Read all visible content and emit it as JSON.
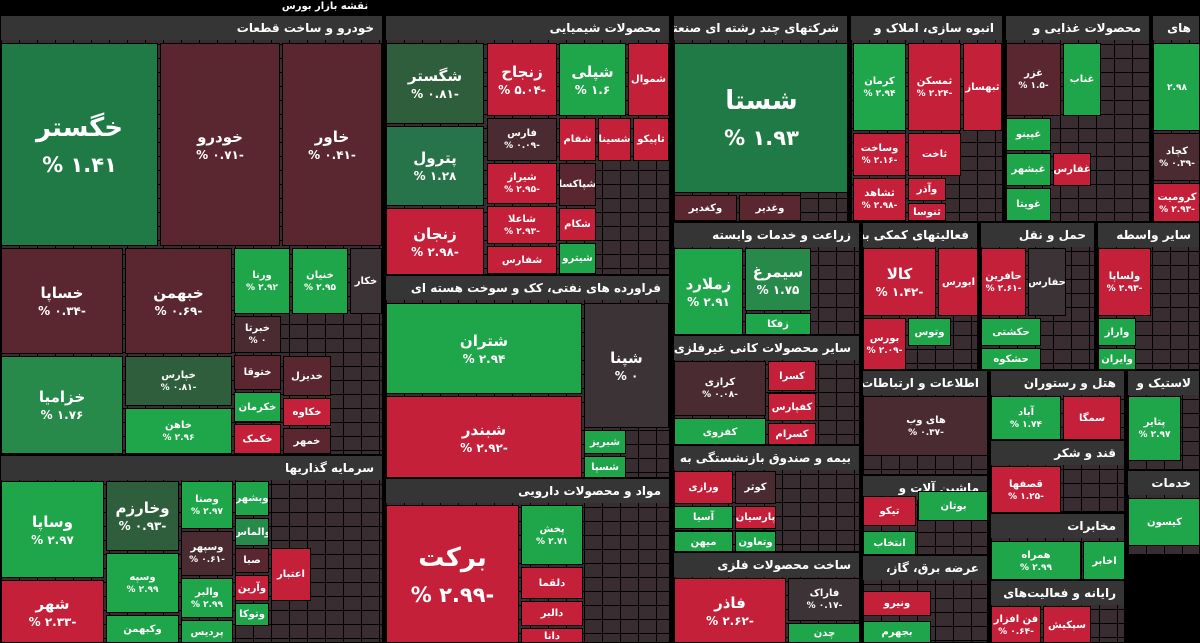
{
  "title": "نقشه بازار بورس",
  "sectors": [
    {
      "name": "خودرو و ساخت قطعات",
      "tiles": [
        {
          "label": "خگستر",
          "change": "۱.۴۱ %",
          "color": "#1f7a45"
        },
        {
          "label": "خودرو",
          "change": "-۰.۷۱ %",
          "color": "#5a2630"
        },
        {
          "label": "خاور",
          "change": "-۰.۴۱ %",
          "color": "#5a2630"
        },
        {
          "label": "خساپا",
          "change": "-۰.۳۴ %",
          "color": "#5a2630"
        },
        {
          "label": "خبهمن",
          "change": "-۰.۶۹ %",
          "color": "#5a2630"
        },
        {
          "label": "ورنا",
          "change": "۲.۹۲ %",
          "color": "#1fa64a"
        },
        {
          "label": "خنیان",
          "change": "۲.۹۵ %",
          "color": "#1fa64a"
        },
        {
          "label": "خکار",
          "color": "#3b3335"
        },
        {
          "label": "خزامیا",
          "change": "۱.۷۶ %",
          "color": "#27894a"
        },
        {
          "label": "خپارس",
          "change": "-۰.۸۱ %",
          "color": "#2e5e3c"
        },
        {
          "label": "خاهن",
          "change": "۲.۹۶ %",
          "color": "#1fa64a"
        },
        {
          "label": "خبرتا",
          "change": "۰ %",
          "color": "#4a2b31"
        },
        {
          "label": "ختوقا",
          "color": "#5a2630"
        },
        {
          "label": "خکرمان",
          "color": "#1fa64a"
        },
        {
          "label": "خکمک",
          "color": "#c5203a"
        },
        {
          "label": "خدیزل",
          "color": "#5a2630"
        },
        {
          "label": "خکاوه",
          "color": "#c5203a"
        },
        {
          "label": "خمهر",
          "color": "#5a2630"
        }
      ]
    },
    {
      "name": "سرمایه گذاریها",
      "tiles": [
        {
          "label": "وساپا",
          "change": "۲.۹۷ %",
          "color": "#1fa64a"
        },
        {
          "label": "شهر",
          "change": "-۲.۳۳ %",
          "color": "#c5203a"
        },
        {
          "label": "وخارزم",
          "change": "-۰.۹۳ %",
          "color": "#2e5e3c"
        },
        {
          "label": "وسپه",
          "change": "۲.۹۹ %",
          "color": "#1fa64a"
        },
        {
          "label": "وکبهمن",
          "color": "#1fa64a"
        },
        {
          "label": "وصنا",
          "change": "۲.۹۷ %",
          "color": "#1fa64a"
        },
        {
          "label": "وسپهر",
          "change": "-۰.۶۱ %",
          "color": "#4a2b31"
        },
        {
          "label": "والبر",
          "change": "۲.۹۹ %",
          "color": "#1fa64a"
        },
        {
          "label": "پردیس",
          "color": "#1fa64a"
        },
        {
          "label": "وبشهر",
          "color": "#1fa64a"
        },
        {
          "label": "والماس",
          "color": "#27894a"
        },
        {
          "label": "صبا",
          "color": "#5a2630"
        },
        {
          "label": "وآرین",
          "color": "#c5203a"
        },
        {
          "label": "وتوکا",
          "color": "#1fa64a"
        },
        {
          "label": "اعتبار",
          "color": "#c5203a"
        }
      ]
    },
    {
      "name": "محصولات شیمیایی",
      "tiles": [
        {
          "label": "شگستر",
          "change": "-۰.۸۱ %",
          "color": "#2e5e3c"
        },
        {
          "label": "پترول",
          "change": "۱.۲۸ %",
          "color": "#27734a"
        },
        {
          "label": "زنجان",
          "change": "-۲.۹۸ %",
          "color": "#c5203a"
        },
        {
          "label": "زنجاح",
          "change": "-۵.۰۴ %",
          "color": "#c5203a"
        },
        {
          "label": "شپلی",
          "change": "۱.۶ %",
          "color": "#1fa64a"
        },
        {
          "label": "شموال",
          "color": "#c5203a"
        },
        {
          "label": "فارس",
          "change": "-۰.۰۹ %",
          "color": "#4a2b31"
        },
        {
          "label": "شفام",
          "color": "#c5203a"
        },
        {
          "label": "شسینا",
          "color": "#c5203a"
        },
        {
          "label": "تاپیکو",
          "color": "#c5203a"
        },
        {
          "label": "شیراز",
          "change": "-۲.۹۵ %",
          "color": "#c5203a"
        },
        {
          "label": "شپاکسا",
          "color": "#5a2630"
        },
        {
          "label": "شاعلا",
          "change": "-۲.۹۳ %",
          "color": "#c5203a"
        },
        {
          "label": "شکام",
          "color": "#c5203a"
        },
        {
          "label": "شفارس",
          "color": "#c5203a"
        },
        {
          "label": "شیترو",
          "color": "#1fa64a"
        }
      ]
    },
    {
      "name": "فراورده های نفتی، کک و سوخت هسته ای",
      "tiles": [
        {
          "label": "شتران",
          "change": "۲.۹۴ %",
          "color": "#1fa64a"
        },
        {
          "label": "شبندر",
          "change": "-۲.۹۲ %",
          "color": "#c5203a"
        },
        {
          "label": "شپنا",
          "change": "۰ %",
          "color": "#3b3335"
        },
        {
          "label": "شبریز",
          "color": "#1fa64a"
        },
        {
          "label": "شسپا",
          "color": "#1fa64a"
        }
      ]
    },
    {
      "name": "مواد و محصولات دارویی",
      "tiles": [
        {
          "label": "برکت",
          "change": "-۲.۹۹ %",
          "color": "#c5203a"
        },
        {
          "label": "پخش",
          "change": "۲.۷۱ %",
          "color": "#1fa64a"
        },
        {
          "label": "دلقما",
          "color": "#c5203a"
        },
        {
          "label": "دالبر",
          "color": "#c5203a"
        },
        {
          "label": "دانا",
          "color": "#c5203a"
        }
      ]
    },
    {
      "name": "شرکتهای چند رشته ای صنعتی",
      "tiles": [
        {
          "label": "شستا",
          "change": "۱.۹۳ %",
          "color": "#1f7a45"
        },
        {
          "label": "وکغدیر",
          "color": "#5a2630"
        },
        {
          "label": "وغدیر",
          "color": "#5a2630"
        }
      ]
    },
    {
      "name": "انبوه سازی، املاک و",
      "tiles": [
        {
          "label": "کرمان",
          "change": "۲.۹۴ %",
          "color": "#1fa64a"
        },
        {
          "label": "ثمسکن",
          "change": "-۲.۲۴ %",
          "color": "#c5203a"
        },
        {
          "label": "ثبهساز",
          "color": "#c5203a"
        },
        {
          "label": "وساخت",
          "change": "-۲.۱۶ %",
          "color": "#c5203a"
        },
        {
          "label": "ثاخت",
          "color": "#c5203a"
        },
        {
          "label": "ثشاهد",
          "change": "-۲.۹۸ %",
          "color": "#c5203a"
        },
        {
          "label": "وآذر",
          "color": "#c5203a"
        },
        {
          "label": "ثنوسا",
          "color": "#c5203a"
        }
      ]
    },
    {
      "name": "محصولات غذایی و",
      "tiles": [
        {
          "label": "غزر",
          "change": "-۱.۵ %",
          "color": "#5a2630"
        },
        {
          "label": "غناب",
          "color": "#1fa64a"
        },
        {
          "label": "غپینو",
          "color": "#1fa64a"
        },
        {
          "label": "غبشهر",
          "color": "#1fa64a"
        },
        {
          "label": "غفارس",
          "color": "#c5203a"
        },
        {
          "label": "غویتا",
          "color": "#1fa64a"
        }
      ]
    },
    {
      "name": "های",
      "tiles": [
        {
          "label": "",
          "change": "۲.۹۸",
          "color": "#1fa64a"
        },
        {
          "label": "کچاد",
          "change": "-۰.۳۹ %",
          "color": "#4a2b31"
        },
        {
          "label": "کرومیت",
          "change": "-۲.۹۳ %",
          "color": "#c5203a"
        }
      ]
    },
    {
      "name": "زراعت و خدمات وابسته",
      "tiles": [
        {
          "label": "زملارد",
          "change": "۲.۹۱ %",
          "color": "#1fa64a"
        },
        {
          "label": "سیمرغ",
          "change": "۱.۷۵ %",
          "color": "#27894a"
        },
        {
          "label": "زفکا",
          "color": "#1fa64a"
        }
      ]
    },
    {
      "name": "سایر محصولات کانی غیرفلزی",
      "tiles": [
        {
          "label": "کرازی",
          "change": "-۰.۰۸ %",
          "color": "#4a2b31"
        },
        {
          "label": "کسرا",
          "color": "#c5203a"
        },
        {
          "label": "کفپارس",
          "color": "#c5203a"
        },
        {
          "label": "کسرام",
          "color": "#c5203a"
        },
        {
          "label": "کفزوی",
          "color": "#1fa64a"
        }
      ]
    },
    {
      "name": "بیمه و صندوق بازنشستگی به",
      "tiles": [
        {
          "label": "ورازی",
          "color": "#c5203a"
        },
        {
          "label": "کوثر",
          "color": "#4a2b31"
        },
        {
          "label": "آسیا",
          "color": "#1fa64a"
        },
        {
          "label": "پارسیان",
          "color": "#c5203a"
        },
        {
          "label": "میهن",
          "color": "#1fa64a"
        },
        {
          "label": "وتعاون",
          "color": "#1fa64a"
        }
      ]
    },
    {
      "name": "ساخت محصولات فلزی",
      "tiles": [
        {
          "label": "فاذر",
          "change": "-۲.۶۲ %",
          "color": "#c5203a"
        },
        {
          "label": "فاراک",
          "change": "-۰.۱۷ %",
          "color": "#3b3335"
        },
        {
          "label": "چدن",
          "color": "#1fa64a"
        }
      ]
    },
    {
      "name": "فعالیتهای کمکی به",
      "tiles": [
        {
          "label": "کالا",
          "change": "-۱.۴۲ %",
          "color": "#c5203a"
        },
        {
          "label": "ابورس",
          "color": "#c5203a"
        },
        {
          "label": "بورس",
          "change": "-۲.۰۹ %",
          "color": "#c5203a"
        },
        {
          "label": "وتوس",
          "color": "#1fa64a"
        }
      ]
    },
    {
      "name": "حمل و نقل",
      "tiles": [
        {
          "label": "حافرین",
          "change": "-۲.۶۱ %",
          "color": "#c5203a"
        },
        {
          "label": "حفارس",
          "color": "#3b3335"
        },
        {
          "label": "حکشتی",
          "color": "#1fa64a"
        },
        {
          "label": "حشکوه",
          "color": "#1fa64a"
        }
      ]
    },
    {
      "name": "سایر واسطه",
      "tiles": [
        {
          "label": "ولساپا",
          "change": "-۲.۹۳ %",
          "color": "#c5203a"
        },
        {
          "label": "واراز",
          "color": "#1fa64a"
        },
        {
          "label": "وایران",
          "color": "#1fa64a"
        }
      ]
    },
    {
      "name": "اطلاعات و ارتباطات",
      "tiles": [
        {
          "label": "های وب",
          "change": "-۰.۳۷ %",
          "color": "#4a2b31"
        }
      ]
    },
    {
      "name": "هتل و رستوران",
      "tiles": [
        {
          "label": "آباد",
          "change": "۱.۷۴ %",
          "color": "#1fa64a"
        },
        {
          "label": "سمگا",
          "color": "#c5203a"
        }
      ]
    },
    {
      "name": "لاستیک و",
      "tiles": [
        {
          "label": "پتایر",
          "change": "۲.۹۷ %",
          "color": "#1fa64a"
        }
      ]
    },
    {
      "name": "ماشین آلات و",
      "tiles": [
        {
          "label": "تیکو",
          "color": "#c5203a"
        },
        {
          "label": "بوتان",
          "color": "#1fa64a"
        },
        {
          "label": "انتخاب",
          "color": "#1fa64a"
        }
      ]
    },
    {
      "name": "قند و شکر",
      "tiles": [
        {
          "label": "قصفها",
          "change": "-۱.۲۵ %",
          "color": "#c5203a"
        }
      ]
    },
    {
      "name": "خدمات",
      "tiles": [
        {
          "label": "کیسون",
          "color": "#1fa64a"
        }
      ]
    },
    {
      "name": "مخابرات",
      "tiles": [
        {
          "label": "همراه",
          "change": "۲.۹۹ %",
          "color": "#1fa64a"
        },
        {
          "label": "اخابر",
          "color": "#1fa64a"
        }
      ]
    },
    {
      "name": "عرضه برق، گاز،",
      "tiles": [
        {
          "label": "ونیرو",
          "color": "#c5203a"
        },
        {
          "label": "بجهرم",
          "color": "#1fa64a"
        }
      ]
    },
    {
      "name": "رایانه و فعالیت‌های",
      "tiles": [
        {
          "label": "فن افزار",
          "change": "-۰.۶۴ %",
          "color": "#c5203a"
        },
        {
          "label": "سپکیش",
          "color": "#c5203a"
        }
      ]
    }
  ]
}
